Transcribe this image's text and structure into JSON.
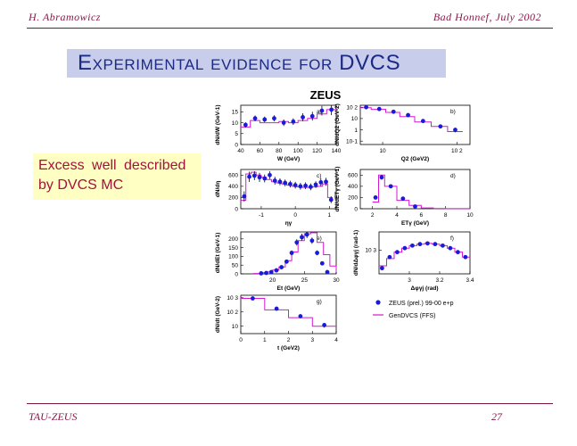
{
  "header": {
    "left": "H. Abramowicz",
    "right": "Bad Honnef, July 2002"
  },
  "title": "Experimental evidence for DVCS",
  "note": {
    "line1": "Excess well described",
    "line2": "by DVCS MC"
  },
  "footer": {
    "left": "TAU-ZEUS",
    "right": "27"
  },
  "figure": {
    "label": "ZEUS",
    "legend": {
      "data": "ZEUS (prel.) 99-00 e+p",
      "mc": "GenDVCS (FFS)"
    },
    "colors": {
      "points": "#1a1ad8",
      "mc": "#d21ad2"
    }
  },
  "chart_data": [
    {
      "type": "line",
      "id": "a",
      "panel_label": "a)",
      "xlabel": "W (GeV)",
      "ylabel": "dN/dW (GeV-1)",
      "xlim": [
        40,
        140
      ],
      "ylim": [
        0,
        18
      ],
      "xticks": [
        40,
        60,
        80,
        100,
        120,
        140
      ],
      "yticks": [
        0,
        5,
        10,
        15
      ],
      "data": {
        "x": [
          45,
          55,
          65,
          75,
          85,
          95,
          105,
          115,
          125,
          135
        ],
        "y": [
          9,
          12,
          11.5,
          12,
          10,
          10.5,
          12.5,
          13,
          15.5,
          16
        ],
        "err": [
          1.2,
          1.3,
          1.3,
          1.4,
          1.5,
          1.5,
          1.8,
          2,
          2.2,
          2.5
        ]
      },
      "mc_steps": {
        "edges": [
          40,
          50,
          60,
          70,
          80,
          90,
          100,
          110,
          120,
          130,
          140
        ],
        "values": [
          8,
          11,
          10,
          10,
          10.5,
          10,
          11,
          12,
          14,
          16
        ]
      }
    },
    {
      "type": "line",
      "id": "b",
      "panel_label": "b)",
      "xlabel": "Q2 (GeV2)",
      "ylabel": "dN/dQ2 (GeV-2)",
      "xscale": "log",
      "yscale": "log",
      "xlim": [
        5,
        150
      ],
      "ylim": [
        0.05,
        150
      ],
      "xticks": [
        10,
        100
      ],
      "yticks": [
        0.1,
        1,
        10,
        100
      ],
      "data": {
        "x": [
          6,
          9,
          14,
          22,
          35,
          60,
          95
        ],
        "y": [
          100,
          70,
          40,
          20,
          6,
          2,
          1
        ],
        "err": [
          12,
          10,
          6,
          3,
          1.2,
          0.6,
          0.4
        ]
      },
      "mc_steps": {
        "edges": [
          5,
          7,
          11,
          17,
          27,
          45,
          75,
          120
        ],
        "values": [
          90,
          65,
          35,
          15,
          5,
          2,
          0.7
        ]
      }
    },
    {
      "type": "line",
      "id": "c",
      "panel_label": "c)",
      "xlabel": "ηγ",
      "ylabel": "dN/dη",
      "xlim": [
        -1.6,
        1.2
      ],
      "ylim": [
        0,
        700
      ],
      "xticks": [
        -1,
        0,
        1
      ],
      "yticks": [
        0,
        200,
        400,
        600
      ],
      "data": {
        "x": [
          -1.5,
          -1.35,
          -1.2,
          -1.05,
          -0.9,
          -0.75,
          -0.6,
          -0.45,
          -0.3,
          -0.15,
          0,
          0.15,
          0.3,
          0.45,
          0.6,
          0.75,
          0.9,
          1.05
        ],
        "y": [
          220,
          570,
          590,
          560,
          540,
          600,
          500,
          480,
          460,
          440,
          420,
          400,
          410,
          390,
          430,
          470,
          480,
          160
        ],
        "err": [
          90,
          90,
          80,
          80,
          70,
          70,
          70,
          60,
          60,
          60,
          60,
          60,
          60,
          60,
          60,
          70,
          70,
          60
        ]
      },
      "mc_steps": {
        "edges": [
          -1.6,
          -1.45,
          -1.3,
          -1.15,
          -1,
          -0.85,
          -0.7,
          -0.55,
          -0.4,
          -0.25,
          -0.1,
          0.05,
          0.2,
          0.35,
          0.5,
          0.65,
          0.8,
          0.95,
          1.1
        ],
        "values": [
          150,
          620,
          650,
          600,
          560,
          520,
          480,
          460,
          440,
          420,
          400,
          390,
          380,
          380,
          390,
          400,
          440,
          200
        ]
      }
    },
    {
      "type": "line",
      "id": "d",
      "panel_label": "d)",
      "xlabel": "ETγ (GeV)",
      "ylabel": "dN/dETγ (GeV-1)",
      "xlim": [
        1,
        10
      ],
      "ylim": [
        0,
        700
      ],
      "xticks": [
        2,
        4,
        6,
        8,
        10
      ],
      "yticks": [
        0,
        200,
        400,
        600
      ],
      "data": {
        "x": [
          2.25,
          2.75,
          3.5,
          4.5,
          5.5
        ],
        "y": [
          200,
          560,
          400,
          180,
          40
        ],
        "err": [
          25,
          40,
          30,
          20,
          10
        ]
      },
      "mc_steps": {
        "edges": [
          2,
          2.5,
          3,
          4,
          5,
          6,
          7,
          8,
          10
        ],
        "values": [
          120,
          600,
          400,
          150,
          60,
          15,
          5,
          2
        ]
      }
    },
    {
      "type": "line",
      "id": "e",
      "panel_label": "e)",
      "xlabel": "Et (GeV)",
      "ylabel": "dN/dEt (GeV-1)",
      "xlim": [
        15,
        30
      ],
      "ylim": [
        0,
        240
      ],
      "xticks": [
        20,
        25,
        30
      ],
      "yticks": [
        0,
        50,
        100,
        150,
        200
      ],
      "data": {
        "x": [
          18.2,
          19,
          19.8,
          20.6,
          21.4,
          22.2,
          23,
          23.8,
          24.6,
          25.4,
          26.2,
          27,
          27.8,
          28.6
        ],
        "y": [
          3,
          5,
          10,
          20,
          38,
          70,
          120,
          180,
          210,
          225,
          190,
          120,
          60,
          10
        ],
        "err": [
          2,
          2,
          3,
          5,
          7,
          10,
          14,
          18,
          20,
          20,
          18,
          14,
          10,
          4
        ]
      },
      "mc_steps": {
        "edges": [
          17,
          18,
          19,
          20,
          21,
          22,
          23,
          24,
          25,
          26,
          27,
          28,
          29,
          30
        ],
        "values": [
          2,
          6,
          12,
          22,
          40,
          75,
          125,
          190,
          230,
          235,
          180,
          110,
          45,
          10
        ]
      }
    },
    {
      "type": "line",
      "id": "f",
      "panel_label": "f)",
      "xlabel": "Δφγj (rad)",
      "ylabel": "dN/dΔφγj (rad-1)",
      "yscale": "log",
      "xlim": [
        2.8,
        3.4
      ],
      "ylim": [
        300,
        2500
      ],
      "xticks": [
        3,
        3.2,
        3.4
      ],
      "yticks": [
        1000
      ],
      "data": {
        "x": [
          2.82,
          2.87,
          2.92,
          2.97,
          3.02,
          3.07,
          3.12,
          3.17,
          3.22,
          3.27,
          3.32,
          3.37
        ],
        "y": [
          400,
          700,
          900,
          1100,
          1250,
          1350,
          1400,
          1350,
          1250,
          1100,
          900,
          700
        ],
        "err": [
          40,
          60,
          70,
          80,
          80,
          85,
          90,
          85,
          80,
          80,
          70,
          60
        ]
      },
      "mc_steps": {
        "edges": [
          2.8,
          2.85,
          2.9,
          2.95,
          3,
          3.05,
          3.1,
          3.15,
          3.2,
          3.25,
          3.3,
          3.35,
          3.4
        ],
        "values": [
          450,
          650,
          900,
          1100,
          1250,
          1350,
          1400,
          1350,
          1250,
          1100,
          900,
          700
        ]
      }
    },
    {
      "type": "line",
      "id": "g",
      "panel_label": "g)",
      "xlabel": "t (GeV2)",
      "ylabel": "dN/dt (GeV-2)",
      "yscale": "log",
      "xlim": [
        0,
        4
      ],
      "ylim": [
        3,
        1500
      ],
      "xticks": [
        0,
        1,
        2,
        3,
        4
      ],
      "yticks": [
        10,
        100,
        1000
      ],
      "data": {
        "x": [
          0.5,
          1.5,
          2.5,
          3.5
        ],
        "y": [
          900,
          170,
          50,
          12
        ],
        "err": [
          120,
          30,
          10,
          4
        ]
      },
      "mc_steps": {
        "edges": [
          0,
          1,
          2,
          3,
          4
        ],
        "values": [
          900,
          140,
          40,
          10
        ]
      }
    }
  ]
}
